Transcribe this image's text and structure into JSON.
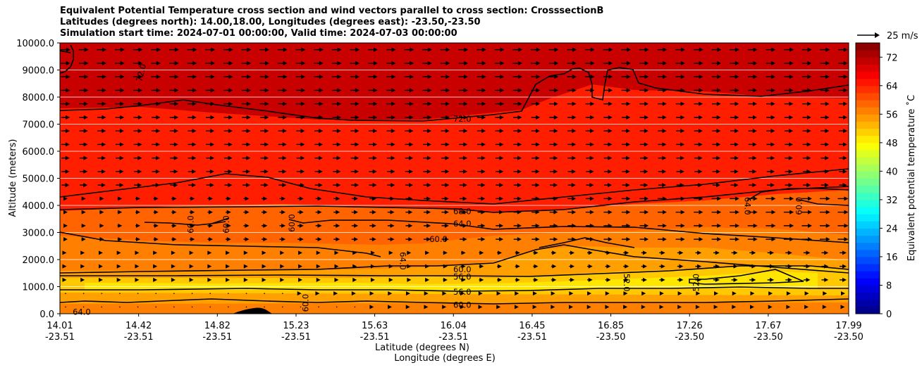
{
  "chart_data": {
    "type": "heatmap",
    "title_lines": [
      "Equivalent Potential Temperature cross section and wind vectors parallel to cross section: CrosssectionB",
      "Latitudes (degrees north): 14.00,18.00, Longitudes (degrees east): -23.50,-23.50",
      "Simulation start time: 2024-07-01 00:00:00, Valid time: 2024-07-03 00:00:00"
    ],
    "xlabel": "Latitude (degrees N)",
    "xlabel2": "Longitude (degrees E)",
    "ylabel": "Altitude (meters)",
    "ylim": [
      0,
      10000
    ],
    "x_ticks": [
      {
        "lat": "14.01",
        "lon": "-23.51"
      },
      {
        "lat": "14.42",
        "lon": "-23.51"
      },
      {
        "lat": "14.82",
        "lon": "-23.51"
      },
      {
        "lat": "15.23",
        "lon": "-23.51"
      },
      {
        "lat": "15.63",
        "lon": "-23.51"
      },
      {
        "lat": "16.04",
        "lon": "-23.51"
      },
      {
        "lat": "16.45",
        "lon": "-23.51"
      },
      {
        "lat": "16.85",
        "lon": "-23.50"
      },
      {
        "lat": "17.26",
        "lon": "-23.50"
      },
      {
        "lat": "17.67",
        "lon": "-23.50"
      },
      {
        "lat": "17.99",
        "lon": "-23.50"
      }
    ],
    "y_ticks": [
      "0.0",
      "1000.0",
      "2000.0",
      "3000.0",
      "4000.0",
      "5000.0",
      "6000.0",
      "7000.0",
      "8000.0",
      "9000.0",
      "10000.0"
    ],
    "grid": "horizontal",
    "colorbar": {
      "label": "Equivalent potential temperature $^\\circ$C",
      "label_display": "Equivalent potential temperature ˚C",
      "ticks": [
        0,
        8,
        16,
        24,
        32,
        40,
        48,
        56,
        64,
        72
      ],
      "min": 0,
      "max": 76,
      "levels": 38,
      "colormap": "jet"
    },
    "quiver_key": "25 m/s",
    "contour_labels": [
      {
        "text": "72.0",
        "x": 14.42,
        "y": 8900,
        "rot": -75
      },
      {
        "text": "72.0",
        "x": 16.04,
        "y": 7200,
        "rot": 0
      },
      {
        "text": "68.0",
        "x": 16.04,
        "y": 3780,
        "rot": 0
      },
      {
        "text": "64.0",
        "x": 16.04,
        "y": 3330,
        "rot": 0
      },
      {
        "text": "60.0",
        "x": 15.92,
        "y": 2750,
        "rot": 0
      },
      {
        "text": "60.0",
        "x": 14.67,
        "y": 3300,
        "rot": -90
      },
      {
        "text": "60.0",
        "x": 14.85,
        "y": 3300,
        "rot": -90
      },
      {
        "text": "60.0",
        "x": 15.18,
        "y": 3350,
        "rot": -90
      },
      {
        "text": "64.0",
        "x": 15.74,
        "y": 1950,
        "rot": 90
      },
      {
        "text": "60.0",
        "x": 16.04,
        "y": 1630,
        "rot": 0
      },
      {
        "text": "56.0",
        "x": 16.04,
        "y": 1370,
        "rot": 0
      },
      {
        "text": "56.0",
        "x": 16.04,
        "y": 800,
        "rot": 0
      },
      {
        "text": "60.0",
        "x": 16.04,
        "y": 320,
        "rot": 0
      },
      {
        "text": "60.0",
        "x": 15.25,
        "y": 400,
        "rot": -90
      },
      {
        "text": "64.0",
        "x": 14.12,
        "y": 70,
        "rot": 0
      },
      {
        "text": "52.0",
        "x": 16.87,
        "y": 1150,
        "rot": 90
      },
      {
        "text": "52.0",
        "x": 17.22,
        "y": 1150,
        "rot": -90
      },
      {
        "text": "64.0",
        "x": 17.48,
        "y": 3980,
        "rot": 90
      },
      {
        "text": "60.0",
        "x": 17.74,
        "y": 3980,
        "rot": -90
      }
    ]
  }
}
